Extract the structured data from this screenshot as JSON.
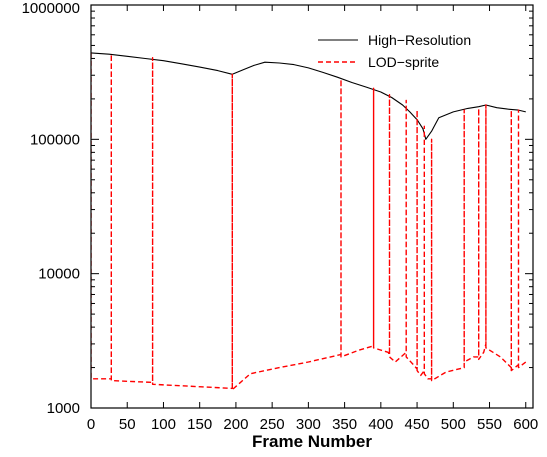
{
  "chart_data": {
    "type": "line",
    "xlabel": "Frame Number",
    "ylabel": "",
    "xlim": [
      0,
      610
    ],
    "ylim": [
      1000,
      1000000
    ],
    "y_scale": "log",
    "grid": false,
    "legend_position": "top-right",
    "x_ticks": [
      0,
      50,
      100,
      150,
      200,
      250,
      300,
      350,
      400,
      450,
      500,
      550,
      600
    ],
    "x_tick_labels": [
      "0",
      "50",
      "100",
      "150",
      "200",
      "250",
      "300",
      "350",
      "400",
      "450",
      "500",
      "550",
      "600"
    ],
    "y_ticks": [
      1000,
      10000,
      100000,
      1000000
    ],
    "y_tick_labels": [
      "1000",
      "10000",
      "100000",
      "1000000"
    ],
    "series": [
      {
        "name": "High−Resolution",
        "color": "#000000",
        "style": "solid",
        "x": [
          0,
          25,
          50,
          75,
          100,
          125,
          150,
          175,
          195,
          210,
          225,
          240,
          260,
          280,
          300,
          320,
          340,
          360,
          380,
          400,
          415,
          430,
          440,
          450,
          458,
          462,
          470,
          480,
          500,
          520,
          535,
          545,
          560,
          575,
          590,
          600
        ],
        "y": [
          440000,
          430000,
          415000,
          400000,
          385000,
          365000,
          345000,
          325000,
          305000,
          330000,
          355000,
          375000,
          370000,
          360000,
          340000,
          315000,
          290000,
          265000,
          245000,
          225000,
          205000,
          180000,
          160000,
          140000,
          120000,
          100000,
          115000,
          145000,
          160000,
          170000,
          175000,
          180000,
          172000,
          168000,
          165000,
          160000
        ]
      },
      {
        "name": "LOD−sprite",
        "color": "#ff0000",
        "style": "dashed",
        "x": [
          0,
          0,
          28,
          28,
          28,
          85,
          85,
          85,
          195,
          195,
          195,
          220,
          260,
          300,
          345,
          345,
          345,
          370,
          390,
          390,
          390,
          410,
          412,
          412,
          412,
          420,
          435,
          435,
          435,
          445,
          450,
          450,
          450,
          455,
          460,
          460,
          460,
          465,
          470,
          470,
          470,
          490,
          515,
          515,
          515,
          528,
          535,
          535,
          535,
          542,
          545,
          545,
          545,
          565,
          580,
          580,
          580,
          585,
          590,
          590,
          590,
          600
        ],
        "y": [
          440000,
          1650,
          1650,
          430000,
          1600,
          1550,
          405000,
          1500,
          1400,
          305000,
          1370,
          1800,
          2000,
          2200,
          2500,
          280000,
          2400,
          2700,
          2900,
          240000,
          2800,
          2600,
          2500,
          215000,
          2400,
          2200,
          2600,
          195000,
          2400,
          2100,
          1950,
          165000,
          1900,
          1750,
          1900,
          125000,
          1800,
          1650,
          1650,
          100000,
          1600,
          1850,
          2000,
          165000,
          2200,
          2400,
          2400,
          170000,
          2300,
          2600,
          3000,
          180000,
          2800,
          2400,
          2000,
          165000,
          1900,
          2000,
          2100,
          165000,
          2000,
          2200
        ]
      }
    ]
  }
}
